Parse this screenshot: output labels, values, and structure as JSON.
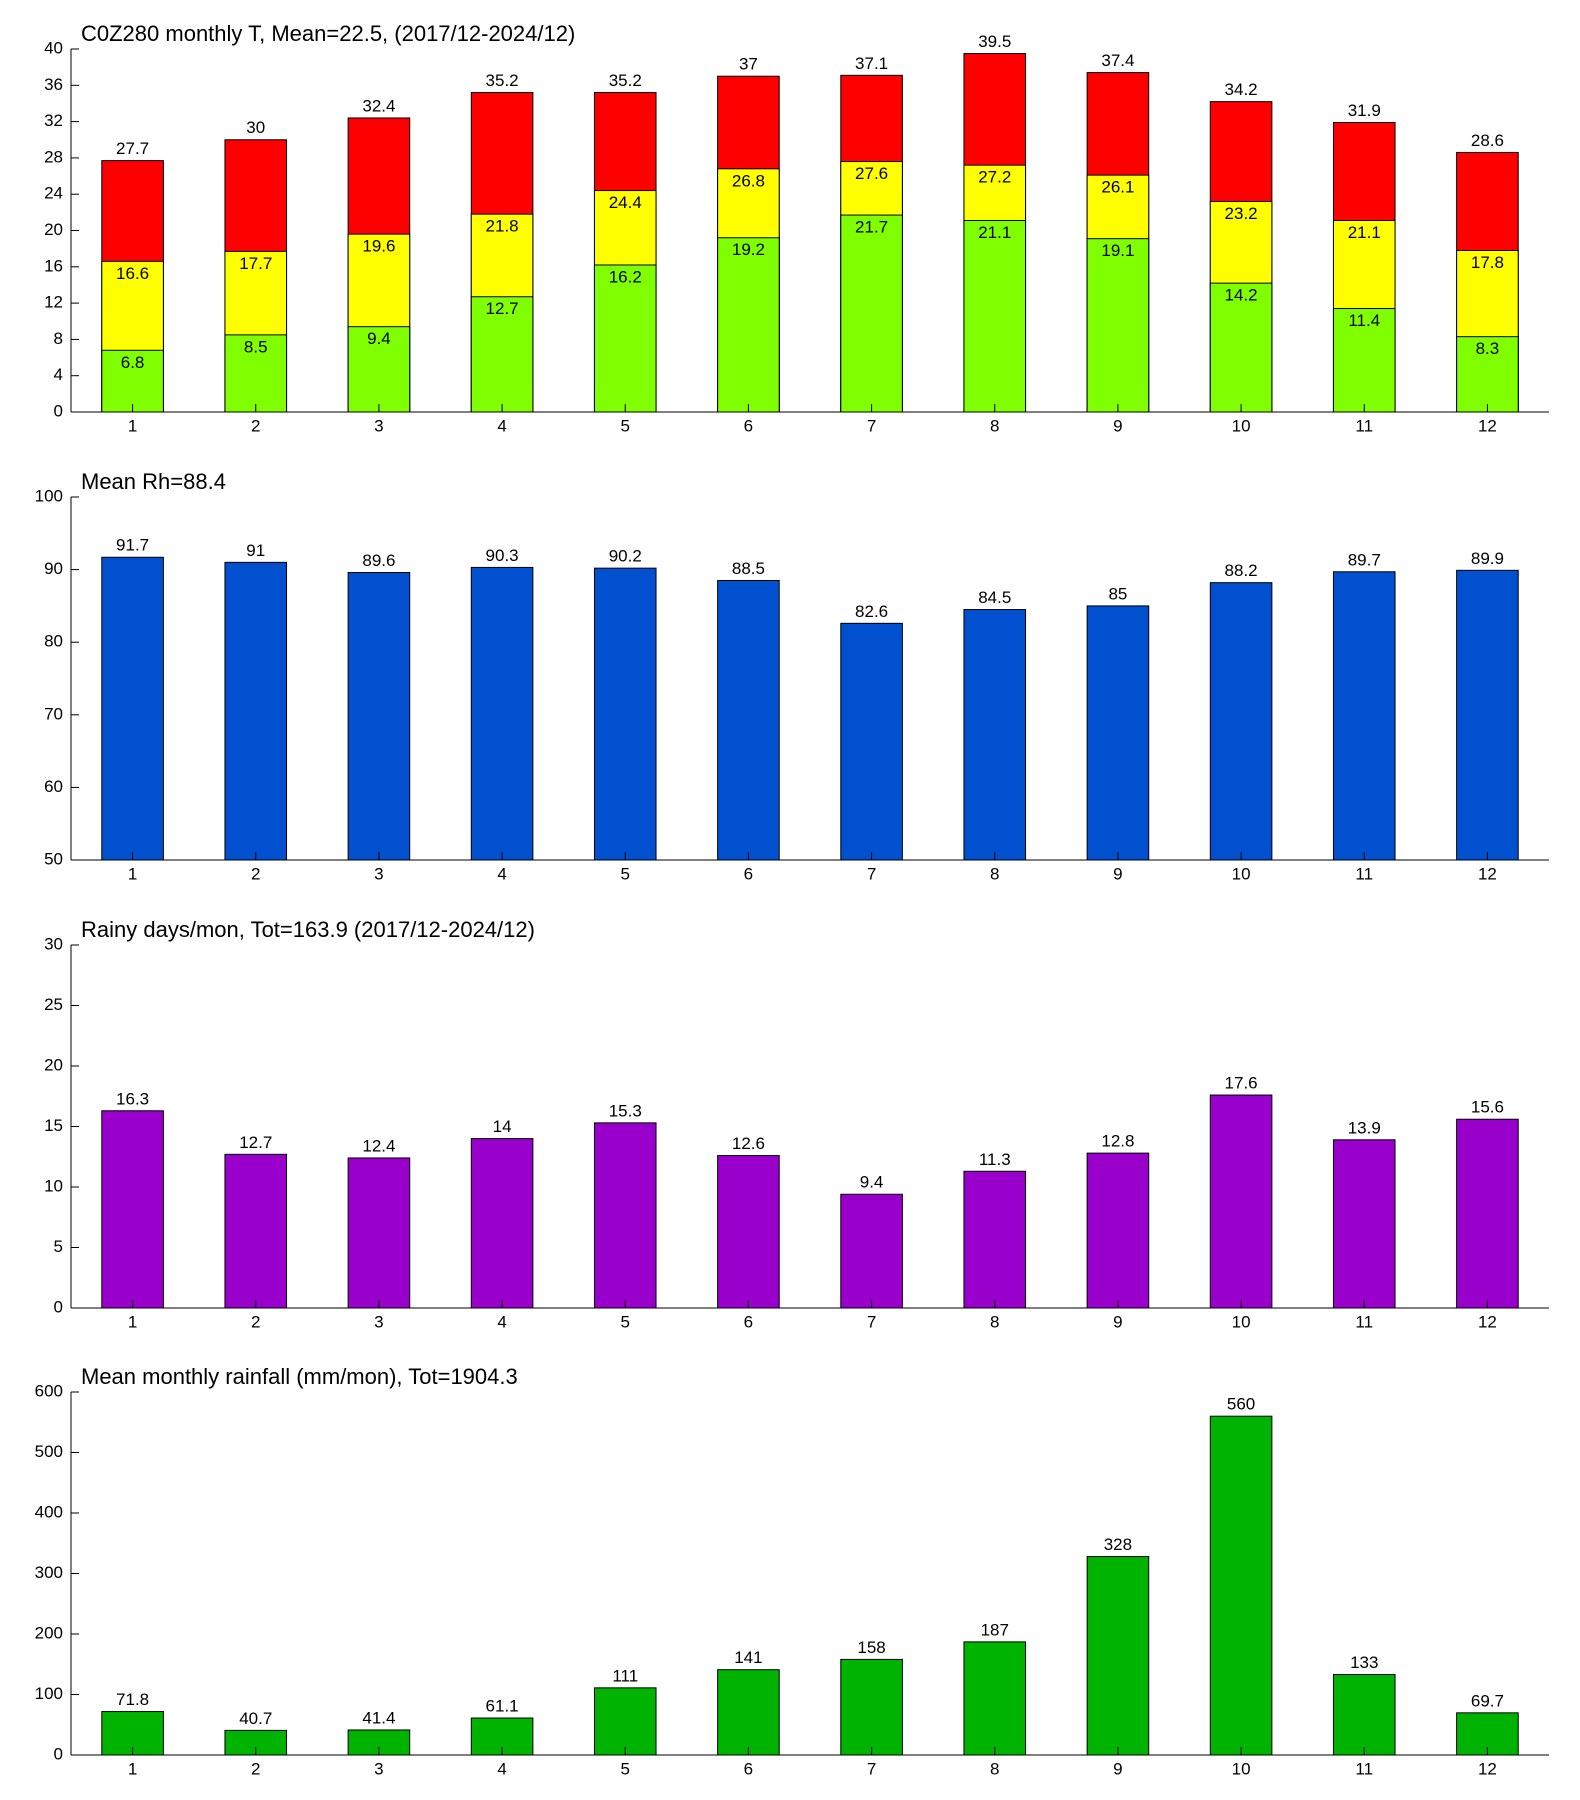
{
  "chart_data": [
    {
      "type": "bar",
      "title": "C0Z280 monthly T, Mean=22.5, (2017/12-2024/12)",
      "categories": [
        "1",
        "2",
        "3",
        "4",
        "5",
        "6",
        "7",
        "8",
        "9",
        "10",
        "11",
        "12"
      ],
      "series": [
        {
          "color": "#ff0000",
          "values": [
            27.7,
            30,
            32.4,
            35.2,
            35.2,
            37,
            37.1,
            39.5,
            37.4,
            34.2,
            31.9,
            28.6
          ]
        },
        {
          "color": "#ffff00",
          "values": [
            16.6,
            17.7,
            19.6,
            21.8,
            24.4,
            26.8,
            27.6,
            27.2,
            26.1,
            23.2,
            21.1,
            17.8
          ]
        },
        {
          "color": "#80ff00",
          "values": [
            6.8,
            8.5,
            9.4,
            12.7,
            16.2,
            19.2,
            21.7,
            21.1,
            19.1,
            14.2,
            11.4,
            8.3
          ]
        }
      ],
      "ylim": [
        0,
        40
      ],
      "yticks": [
        0,
        4,
        8,
        12,
        16,
        20,
        24,
        28,
        32,
        36,
        40
      ]
    },
    {
      "type": "bar",
      "title": "Mean Rh=88.4",
      "categories": [
        "1",
        "2",
        "3",
        "4",
        "5",
        "6",
        "7",
        "8",
        "9",
        "10",
        "11",
        "12"
      ],
      "values": [
        91.7,
        91,
        89.6,
        90.3,
        90.2,
        88.5,
        82.6,
        84.5,
        85,
        88.2,
        89.7,
        89.9
      ],
      "color": "#0050d0",
      "ylim": [
        50,
        100
      ],
      "yticks": [
        50,
        60,
        70,
        80,
        90,
        100
      ]
    },
    {
      "type": "bar",
      "title": "Rainy days/mon, Tot=163.9 (2017/12-2024/12)",
      "categories": [
        "1",
        "2",
        "3",
        "4",
        "5",
        "6",
        "7",
        "8",
        "9",
        "10",
        "11",
        "12"
      ],
      "values": [
        16.3,
        12.7,
        12.4,
        14,
        15.3,
        12.6,
        9.4,
        11.3,
        12.8,
        17.6,
        13.9,
        15.6
      ],
      "color": "#9900cc",
      "ylim": [
        0,
        30
      ],
      "yticks": [
        0,
        5,
        10,
        15,
        20,
        25,
        30
      ]
    },
    {
      "type": "bar",
      "title": "Mean monthly rainfall (mm/mon), Tot=1904.3",
      "categories": [
        "1",
        "2",
        "3",
        "4",
        "5",
        "6",
        "7",
        "8",
        "9",
        "10",
        "11",
        "12"
      ],
      "values": [
        71.8,
        40.7,
        41.4,
        61.1,
        111,
        141,
        158,
        187,
        328,
        560,
        133,
        69.7
      ],
      "color": "#00b300",
      "ylim": [
        0,
        600
      ],
      "yticks": [
        0,
        100,
        200,
        300,
        400,
        500,
        600
      ]
    }
  ]
}
